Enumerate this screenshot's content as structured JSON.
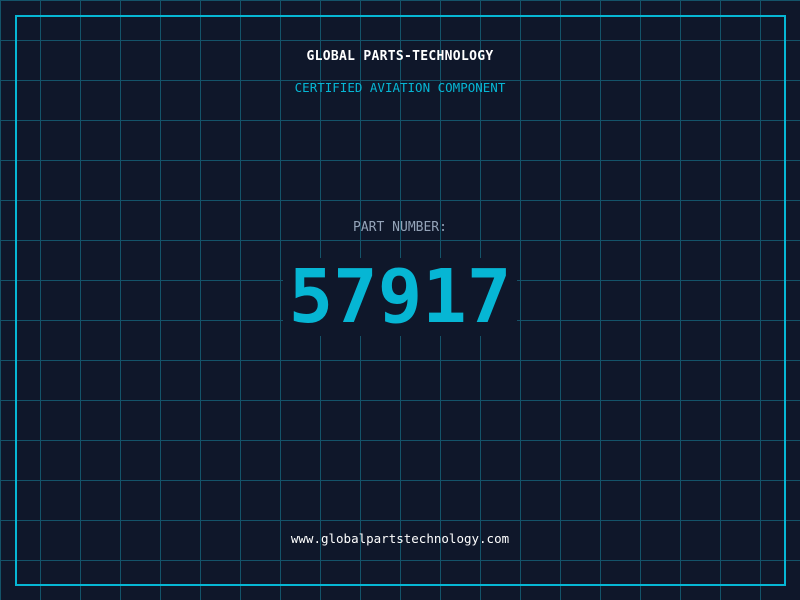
{
  "header": {
    "brand": "GLOBAL PARTS-TECHNOLOGY",
    "subtitle": "CERTIFIED AVIATION COMPONENT"
  },
  "part": {
    "label": "PART NUMBER:",
    "number": "57917"
  },
  "footer": {
    "url": "www.globalpartstechnology.com"
  },
  "colors": {
    "background": "#0f172a",
    "accent": "#06b6d4",
    "grid": "#155e75",
    "label": "#94a3b8"
  }
}
